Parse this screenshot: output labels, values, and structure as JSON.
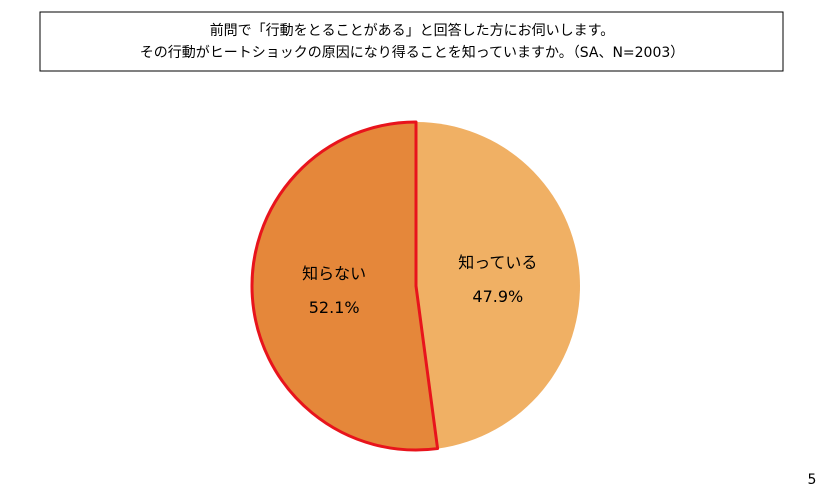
{
  "chart_data": {
    "type": "pie",
    "title": [
      "前問で「行動をとることがある」と回答した方にお伺いします。",
      "その行動がヒートショックの原因になり得ることを知っていますか。（SA、N=2003）"
    ],
    "categories": [
      "知っている",
      "知らない"
    ],
    "values": [
      47.9,
      52.1
    ],
    "value_labels": [
      "47.9%",
      "52.1%"
    ],
    "colors": [
      "#f0b064",
      "#e5873a"
    ],
    "edgecolors": [
      "none",
      "#e8141c"
    ]
  },
  "page_number": "5"
}
